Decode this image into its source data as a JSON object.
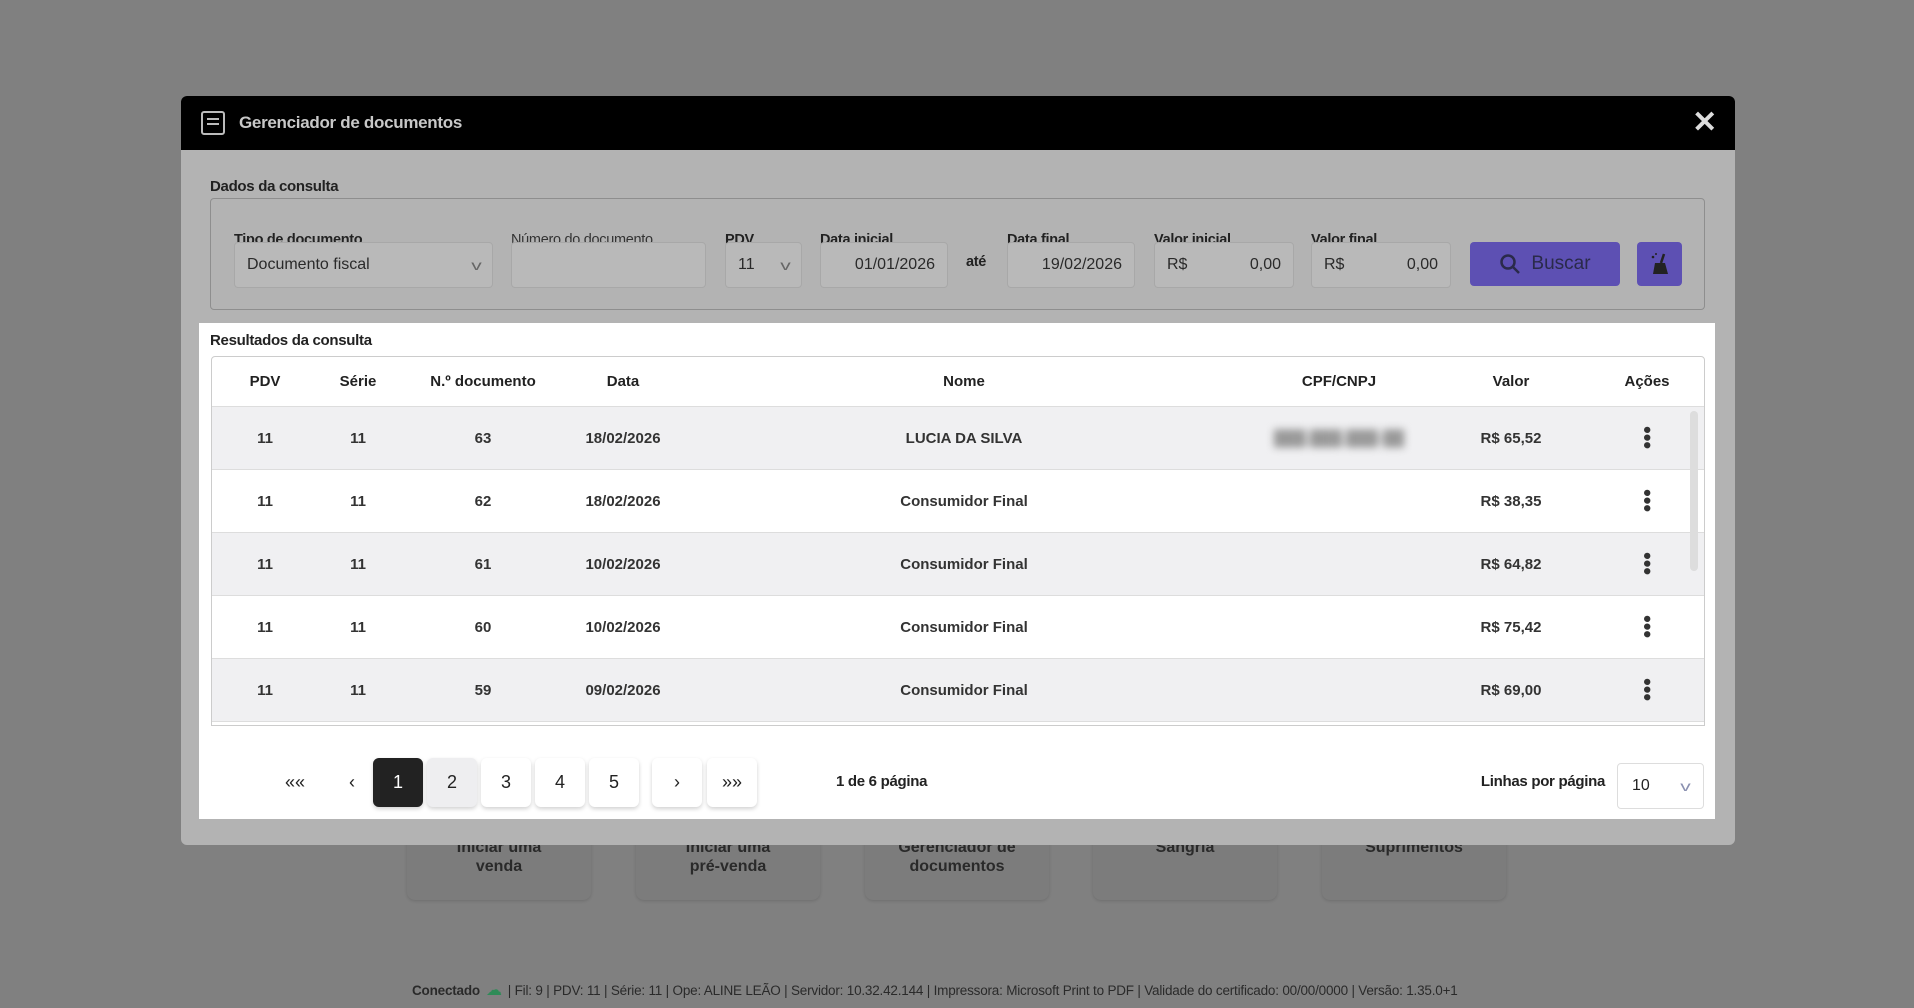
{
  "background": {
    "tiles": [
      {
        "line1": "Iniciar uma",
        "line2": "venda"
      },
      {
        "line1": "Iniciar uma",
        "line2": "pré-venda"
      },
      {
        "line1": "Gerenciador de",
        "line2": "documentos"
      },
      {
        "line1": "Sangria",
        "line2": ""
      },
      {
        "line1": "Suprimentos",
        "line2": ""
      }
    ],
    "status": {
      "connection": "Conectado",
      "details": "| Fil: 9 | PDV: 11 | Série: 11 | Ope: ALINE LEÃO | Servidor: 10.32.42.144 | Impressora: Microsoft Print to PDF | Validade do certificado: 00/00/0000 | Versão: 1.35.0+1"
    }
  },
  "modal": {
    "title": "Gerenciador de documentos",
    "icon": "document-icon",
    "query": {
      "section": "Dados da consulta",
      "tipo_label": "Tipo de documento",
      "tipo_value": "Documento fiscal",
      "numero_label": "Número do documento",
      "numero_value": "",
      "pdv_label": "PDV",
      "pdv_value": "11",
      "data_inicial_label": "Data inicial",
      "data_inicial": "01/01/2026",
      "ate": "até",
      "data_final_label": "Data final",
      "data_final": "19/02/2026",
      "valor_inicial_label": "Valor inicial",
      "valor_final_label": "Valor final",
      "currency": "R$",
      "valor_inicial": "0,00",
      "valor_final": "0,00",
      "buscar": "Buscar",
      "accent": "#5d50b3"
    },
    "results": {
      "section": "Resultados da consulta",
      "columns": [
        "PDV",
        "Série",
        "N.º documento",
        "Data",
        "Nome",
        "CPF/CNPJ",
        "Valor",
        "Ações"
      ],
      "rows": [
        {
          "pdv": "11",
          "serie": "11",
          "doc": "63",
          "data": "18/02/2026",
          "nome": "LUCIA DA SILVA",
          "cpf": "███.███.███-██",
          "valor": "R$ 65,52"
        },
        {
          "pdv": "11",
          "serie": "11",
          "doc": "62",
          "data": "18/02/2026",
          "nome": "Consumidor Final",
          "cpf": "",
          "valor": "R$ 38,35"
        },
        {
          "pdv": "11",
          "serie": "11",
          "doc": "61",
          "data": "10/02/2026",
          "nome": "Consumidor Final",
          "cpf": "",
          "valor": "R$ 64,82"
        },
        {
          "pdv": "11",
          "serie": "11",
          "doc": "60",
          "data": "10/02/2026",
          "nome": "Consumidor Final",
          "cpf": "",
          "valor": "R$ 75,42"
        },
        {
          "pdv": "11",
          "serie": "11",
          "doc": "59",
          "data": "09/02/2026",
          "nome": "Consumidor Final",
          "cpf": "",
          "valor": "R$ 69,00"
        }
      ]
    },
    "pagination": {
      "first": "«",
      "prev": "‹",
      "pages": [
        "1",
        "2",
        "3",
        "4",
        "5"
      ],
      "current": "1",
      "next": "›",
      "last": "»",
      "info": "1 de 6 página",
      "rows_label": "Linhas por página",
      "rows_value": "10"
    }
  }
}
